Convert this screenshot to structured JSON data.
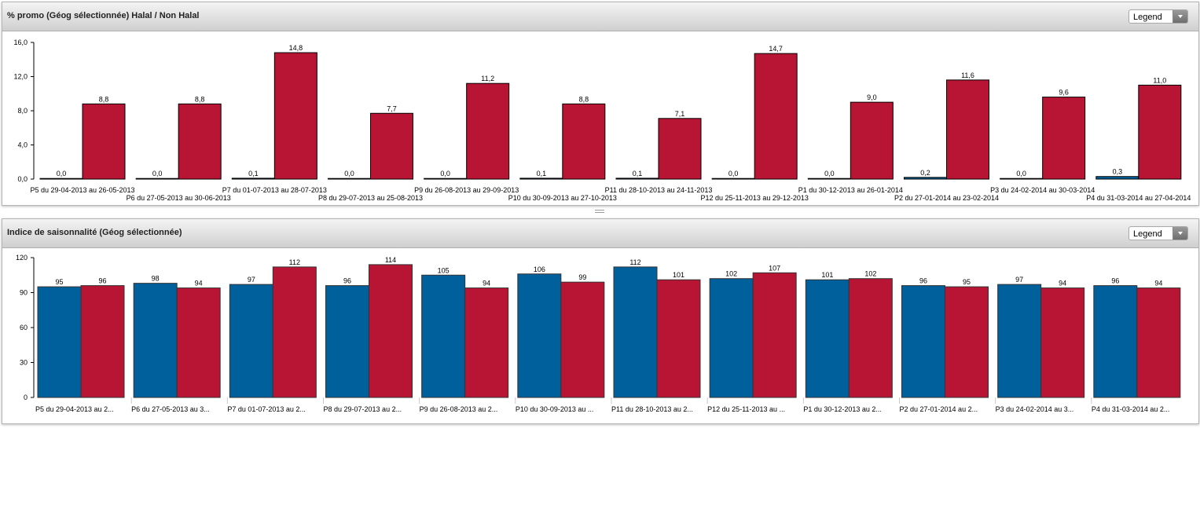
{
  "colors": {
    "series_a": "#00609c",
    "series_b": "#b81434",
    "axis": "#000000"
  },
  "panels": [
    {
      "title": "% promo (Géog sélectionnée) Halal / Non Halal",
      "legend_label": "Legend"
    },
    {
      "title": "Indice de saisonnalité (Géog sélectionnée)",
      "legend_label": "Legend"
    }
  ],
  "chart_data": [
    {
      "type": "bar",
      "title": "% promo (Géog sélectionnée) Halal / Non Halal",
      "xlabel": "",
      "ylabel": "",
      "ylim": [
        0,
        16
      ],
      "yticks": [
        "0,0",
        "4,0",
        "8,0",
        "12,0",
        "16,0"
      ],
      "grid": false,
      "legend": "collapsed dropdown",
      "categories": [
        "P5 du 29-04-2013 au 26-05-2013",
        "P6 du 27-05-2013 au 30-06-2013",
        "P7 du 01-07-2013 au 28-07-2013",
        "P8 du 29-07-2013 au 25-08-2013",
        "P9 du 26-08-2013 au 29-09-2013",
        "P10 du 30-09-2013 au 27-10-2013",
        "P11 du 28-10-2013 au 24-11-2013",
        "P12 du 25-11-2013 au 29-12-2013",
        "P1 du 30-12-2013 au 26-01-2014",
        "P2 du 27-01-2014 au 23-02-2014",
        "P3 du 24-02-2014 au 30-03-2014",
        "P4 du 31-03-2014 au 27-04-2014"
      ],
      "series": [
        {
          "values": [
            0.0,
            0.0,
            0.1,
            0.0,
            0.0,
            0.1,
            0.1,
            0.0,
            0.0,
            0.2,
            0.0,
            0.3
          ],
          "labels": [
            "0,0",
            "0,0",
            "0,1",
            "0,0",
            "0,0",
            "0,1",
            "0,1",
            "0,0",
            "0,0",
            "0,2",
            "0,0",
            "0,3"
          ]
        },
        {
          "values": [
            8.8,
            8.8,
            14.8,
            7.7,
            11.2,
            8.8,
            7.1,
            14.7,
            9.0,
            11.6,
            9.6,
            11.0
          ],
          "labels": [
            "8,8",
            "8,8",
            "14,8",
            "7,7",
            "11,2",
            "8,8",
            "7,1",
            "14,7",
            "9,0",
            "11,6",
            "9,6",
            "11,0"
          ]
        }
      ]
    },
    {
      "type": "bar",
      "title": "Indice de saisonnalité (Géog sélectionnée)",
      "xlabel": "",
      "ylabel": "",
      "ylim": [
        0,
        120
      ],
      "yticks": [
        "0",
        "30",
        "60",
        "90",
        "120"
      ],
      "grid": false,
      "legend": "collapsed dropdown",
      "categories": [
        "P5 du 29-04-2013 au 2...",
        "P6 du 27-05-2013 au 3...",
        "P7 du 01-07-2013 au 2...",
        "P8 du 29-07-2013 au 2...",
        "P9 du 26-08-2013 au 2...",
        "P10 du 30-09-2013 au ...",
        "P11 du 28-10-2013 au 2...",
        "P12 du 25-11-2013 au ...",
        "P1 du 30-12-2013 au 2...",
        "P2 du 27-01-2014 au 2...",
        "P3 du 24-02-2014 au 3...",
        "P4 du 31-03-2014 au 2..."
      ],
      "series": [
        {
          "values": [
            95,
            98,
            97,
            96,
            105,
            106,
            112,
            102,
            101,
            96,
            97,
            96
          ],
          "labels": [
            "95",
            "98",
            "97",
            "96",
            "105",
            "106",
            "112",
            "102",
            "101",
            "96",
            "97",
            "96"
          ]
        },
        {
          "values": [
            96,
            94,
            112,
            114,
            94,
            99,
            101,
            107,
            102,
            95,
            94,
            94
          ],
          "labels": [
            "96",
            "94",
            "112",
            "114",
            "94",
            "99",
            "101",
            "107",
            "102",
            "95",
            "94",
            "94"
          ]
        }
      ]
    }
  ]
}
